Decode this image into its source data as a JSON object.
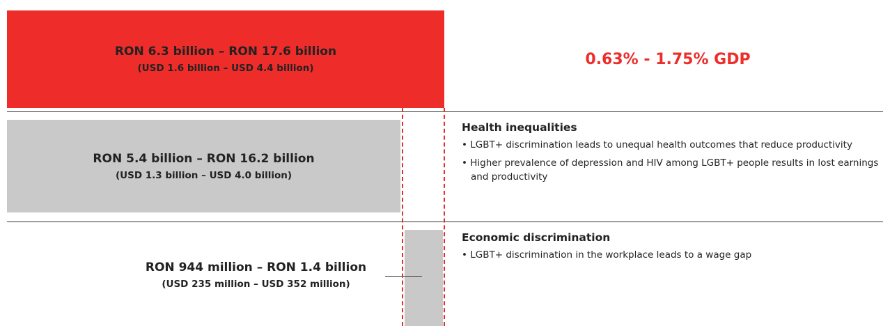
{
  "total": {
    "ron": "RON 6.3 billion – RON 17.6 billion",
    "usd": "(USD 1.6 billion – USD 4.4 billion)",
    "gdp": "0.63% - 1.75% GDP"
  },
  "sections": [
    {
      "ron": "RON 5.4 billion – RON 16.2 billion",
      "usd": "(USD 1.3 billion – USD 4.0 billion)",
      "heading": "Health inequalities",
      "bullets": [
        "LGBT+ discrimination leads to unequal health outcomes that reduce productivity",
        "Higher prevalence of depression and HIV among LGBT+ people results in lost earnings and productivity"
      ]
    },
    {
      "ron": "RON 944 million – RON 1.4 billion",
      "usd": "(USD 235 million – USD 352 million)",
      "heading": "Economic discrimination",
      "bullets": [
        "LGBT+ discrimination in the workplace leads to a wage gap"
      ]
    }
  ]
}
